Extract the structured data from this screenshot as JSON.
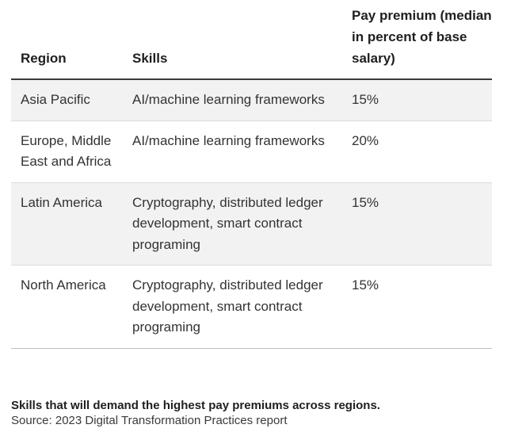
{
  "table": {
    "headers": [
      "Region",
      "Skills",
      "Pay premium (median in percent of base salary)"
    ],
    "rows": [
      {
        "region": "Asia Pacific",
        "skills": "AI/machine learning frameworks",
        "premium": "15%"
      },
      {
        "region": "Europe, Middle East and Africa",
        "skills": "AI/machine learning frameworks",
        "premium": "20%"
      },
      {
        "region": "Latin America",
        "skills": "Cryptography, distributed ledger development, smart contract programing",
        "premium": "15%"
      },
      {
        "region": "North America",
        "skills": "Cryptography, distributed ledger development, smart contract programing",
        "premium": "15%"
      }
    ]
  },
  "caption": {
    "title": "Skills that will demand the highest pay premiums across regions.",
    "source": "Source: 2023 Digital Transformation Practices report"
  },
  "colors": {
    "shaded_row": "#f2f2f2",
    "header_rule": "#3a3a3a",
    "text": "#333333"
  }
}
